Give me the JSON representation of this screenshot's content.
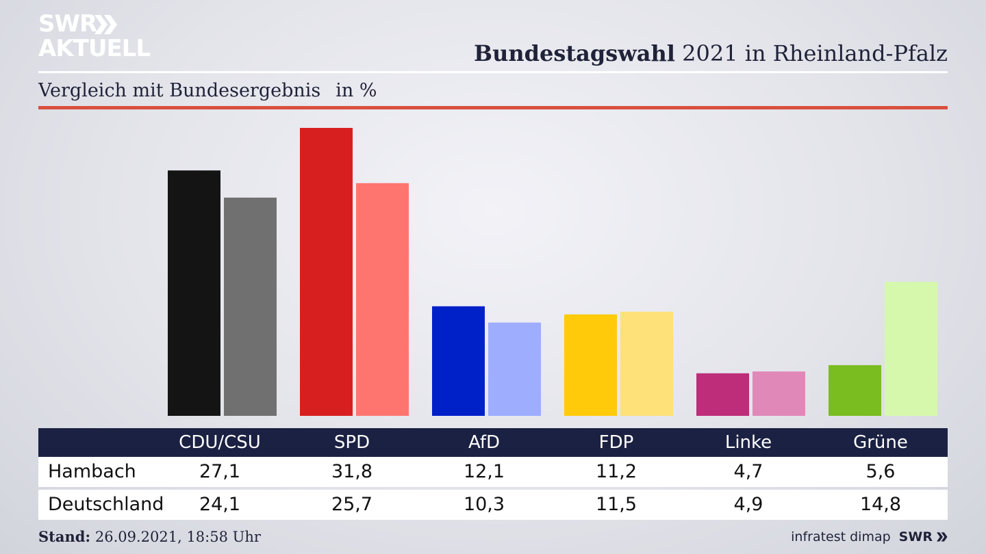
{
  "logo": {
    "line1": "SWR",
    "line2": "AKTUELL"
  },
  "header": {
    "title_bold": "Bundestagswahl",
    "title_rest": " 2021 in Rheinland-Pfalz",
    "subtitle": "Vergleich mit Bundesergebnis",
    "unit": "in %"
  },
  "chart_data": {
    "type": "bar",
    "categories": [
      "CDU/CSU",
      "SPD",
      "AfD",
      "FDP",
      "Linke",
      "Grüne"
    ],
    "series": [
      {
        "name": "Hambach",
        "values": [
          27.1,
          31.8,
          12.1,
          11.2,
          4.7,
          5.6
        ],
        "display": [
          "27,1",
          "31,8",
          "12,1",
          "11,2",
          "4,7",
          "5,6"
        ],
        "colors": [
          "#141414",
          "#d81f1f",
          "#0020c8",
          "#ffca0a",
          "#be2d7a",
          "#79bd21"
        ]
      },
      {
        "name": "Deutschland",
        "values": [
          24.1,
          25.7,
          10.3,
          11.5,
          4.9,
          14.8
        ],
        "display": [
          "24,1",
          "25,7",
          "10,3",
          "11,5",
          "4,9",
          "14,8"
        ],
        "colors": [
          "#717070",
          "#fe7570",
          "#9eadfe",
          "#fee178",
          "#e088b8",
          "#d6f8ad"
        ]
      }
    ],
    "ylim": [
      0,
      31.8
    ],
    "grid": false
  },
  "footer": {
    "stand_label": "Stand:",
    "stand_value": " 26.09.2021, 18:58 Uhr",
    "source": "infratest dimap",
    "brand": "SWR"
  }
}
